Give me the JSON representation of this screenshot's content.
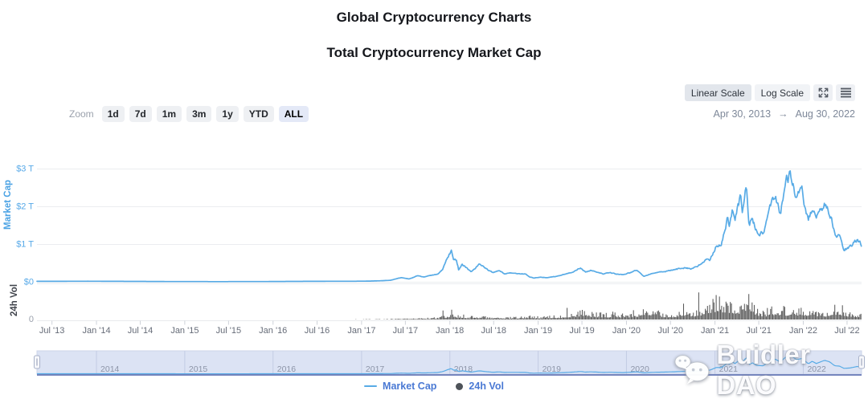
{
  "page": {
    "title": "Global Cryptocurrency Charts",
    "subtitle": "Total Cryptocurrency Market Cap"
  },
  "toolbar": {
    "scale_buttons": [
      {
        "label": "Linear Scale",
        "selected": true
      },
      {
        "label": "Log Scale",
        "selected": false
      }
    ],
    "icons": [
      "fullscreen-icon",
      "menu-icon"
    ],
    "date_range": {
      "start": "Apr 30, 2013",
      "arrow": "→",
      "end": "Aug 30, 2022"
    }
  },
  "zoom_controls": {
    "label": "Zoom",
    "options": [
      {
        "label": "1d",
        "selected": false
      },
      {
        "label": "7d",
        "selected": false
      },
      {
        "label": "1m",
        "selected": false
      },
      {
        "label": "3m",
        "selected": false
      },
      {
        "label": "1y",
        "selected": false
      },
      {
        "label": "YTD",
        "selected": false
      },
      {
        "label": "ALL",
        "selected": true
      }
    ]
  },
  "legend": {
    "items": [
      {
        "label": "Market Cap",
        "type": "line",
        "color": "#58abe6"
      },
      {
        "label": "24h Vol",
        "type": "dot",
        "color": "#4e5359"
      }
    ]
  },
  "watermark": {
    "text": "Buidler DAO",
    "icon": "wechat-icon"
  },
  "chart_data": {
    "type": "line",
    "title": "Total Cryptocurrency Market Cap",
    "x_range": [
      "2013-04-30",
      "2022-08-30"
    ],
    "grid": true,
    "legend_position": "bottom",
    "y_axis_market_cap": {
      "title": "Market Cap",
      "unit": "trillion USD",
      "ylim": [
        0,
        3.2
      ],
      "ticks": [
        {
          "value": 0,
          "label": "$0"
        },
        {
          "value": 1,
          "label": "$1 T"
        },
        {
          "value": 2,
          "label": "$2 T"
        },
        {
          "value": 3,
          "label": "$3 T"
        }
      ],
      "color": "#57a9e8"
    },
    "y_axis_volume": {
      "title": "24h Vol",
      "unit": "billion USD",
      "ylim": [
        0,
        300
      ],
      "ticks": [
        {
          "value": 0,
          "label": "0"
        }
      ],
      "color": "#9aa0ac"
    },
    "x_ticks": [
      {
        "date": "2013-07-01",
        "label": "Jul '13"
      },
      {
        "date": "2014-01-01",
        "label": "Jan '14"
      },
      {
        "date": "2014-07-01",
        "label": "Jul '14"
      },
      {
        "date": "2015-01-01",
        "label": "Jan '15"
      },
      {
        "date": "2015-07-01",
        "label": "Jul '15"
      },
      {
        "date": "2016-01-01",
        "label": "Jan '16"
      },
      {
        "date": "2016-07-01",
        "label": "Jul '16"
      },
      {
        "date": "2017-01-01",
        "label": "Jan '17"
      },
      {
        "date": "2017-07-01",
        "label": "Jul '17"
      },
      {
        "date": "2018-01-01",
        "label": "Jan '18"
      },
      {
        "date": "2018-07-01",
        "label": "Jul '18"
      },
      {
        "date": "2019-01-01",
        "label": "Jan '19"
      },
      {
        "date": "2019-07-01",
        "label": "Jul '19"
      },
      {
        "date": "2020-01-01",
        "label": "Jan '20"
      },
      {
        "date": "2020-07-01",
        "label": "Jul '20"
      },
      {
        "date": "2021-01-01",
        "label": "Jan '21"
      },
      {
        "date": "2021-07-01",
        "label": "Jul '21"
      },
      {
        "date": "2022-01-01",
        "label": "Jan '22"
      },
      {
        "date": "2022-07-01",
        "label": "Jul '22"
      }
    ],
    "navigator_years": [
      {
        "date": "2014-01-01",
        "label": "2014"
      },
      {
        "date": "2015-01-01",
        "label": "2015"
      },
      {
        "date": "2016-01-01",
        "label": "2016"
      },
      {
        "date": "2017-01-01",
        "label": "2017"
      },
      {
        "date": "2018-01-01",
        "label": "2018"
      },
      {
        "date": "2019-01-01",
        "label": "2019"
      },
      {
        "date": "2020-01-01",
        "label": "2020"
      },
      {
        "date": "2021-01-01",
        "label": "2021"
      },
      {
        "date": "2022-01-01",
        "label": "2022"
      }
    ],
    "series": [
      {
        "name": "Market Cap",
        "type": "line",
        "color": "#58abe6",
        "unit": "trillion USD",
        "points": [
          [
            "2013-04-30",
            0.013
          ],
          [
            "2013-06-15",
            0.012
          ],
          [
            "2013-11-30",
            0.016
          ],
          [
            "2014-01-05",
            0.014
          ],
          [
            "2014-06-01",
            0.011
          ],
          [
            "2014-12-01",
            0.006
          ],
          [
            "2015-06-01",
            0.005
          ],
          [
            "2015-12-01",
            0.007
          ],
          [
            "2016-06-15",
            0.013
          ],
          [
            "2016-12-15",
            0.016
          ],
          [
            "2017-02-01",
            0.019
          ],
          [
            "2017-03-15",
            0.026
          ],
          [
            "2017-05-01",
            0.04
          ],
          [
            "2017-05-25",
            0.08
          ],
          [
            "2017-06-15",
            0.112
          ],
          [
            "2017-07-16",
            0.07
          ],
          [
            "2017-08-20",
            0.16
          ],
          [
            "2017-09-14",
            0.13
          ],
          [
            "2017-10-15",
            0.17
          ],
          [
            "2017-11-12",
            0.2
          ],
          [
            "2017-12-01",
            0.32
          ],
          [
            "2017-12-20",
            0.6
          ],
          [
            "2018-01-07",
            0.82
          ],
          [
            "2018-01-17",
            0.55
          ],
          [
            "2018-01-28",
            0.6
          ],
          [
            "2018-02-06",
            0.33
          ],
          [
            "2018-02-20",
            0.47
          ],
          [
            "2018-03-10",
            0.38
          ],
          [
            "2018-03-30",
            0.26
          ],
          [
            "2018-04-25",
            0.42
          ],
          [
            "2018-05-05",
            0.46
          ],
          [
            "2018-05-25",
            0.36
          ],
          [
            "2018-06-12",
            0.3
          ],
          [
            "2018-06-29",
            0.24
          ],
          [
            "2018-07-25",
            0.3
          ],
          [
            "2018-08-14",
            0.21
          ],
          [
            "2018-09-05",
            0.23
          ],
          [
            "2018-10-10",
            0.22
          ],
          [
            "2018-11-10",
            0.21
          ],
          [
            "2018-11-26",
            0.13
          ],
          [
            "2018-12-15",
            0.1
          ],
          [
            "2019-01-10",
            0.12
          ],
          [
            "2019-02-07",
            0.11
          ],
          [
            "2019-03-15",
            0.14
          ],
          [
            "2019-04-10",
            0.18
          ],
          [
            "2019-05-15",
            0.24
          ],
          [
            "2019-06-26",
            0.36
          ],
          [
            "2019-07-17",
            0.26
          ],
          [
            "2019-08-06",
            0.3
          ],
          [
            "2019-09-03",
            0.26
          ],
          [
            "2019-09-26",
            0.21
          ],
          [
            "2019-10-26",
            0.24
          ],
          [
            "2019-11-25",
            0.2
          ],
          [
            "2019-12-18",
            0.19
          ],
          [
            "2020-01-15",
            0.24
          ],
          [
            "2020-02-14",
            0.31
          ],
          [
            "2020-03-13",
            0.14
          ],
          [
            "2020-04-10",
            0.21
          ],
          [
            "2020-05-08",
            0.25
          ],
          [
            "2020-06-10",
            0.27
          ],
          [
            "2020-07-25",
            0.33
          ],
          [
            "2020-09-01",
            0.39
          ],
          [
            "2020-09-23",
            0.34
          ],
          [
            "2020-10-21",
            0.4
          ],
          [
            "2020-11-24",
            0.58
          ],
          [
            "2020-12-10",
            0.55
          ],
          [
            "2021-01-08",
            1.0
          ],
          [
            "2021-01-27",
            0.92
          ],
          [
            "2021-02-21",
            1.7
          ],
          [
            "2021-02-28",
            1.45
          ],
          [
            "2021-03-13",
            1.85
          ],
          [
            "2021-03-25",
            1.6
          ],
          [
            "2021-04-16",
            2.25
          ],
          [
            "2021-04-25",
            1.85
          ],
          [
            "2021-05-11",
            2.55
          ],
          [
            "2021-05-23",
            1.45
          ],
          [
            "2021-06-05",
            1.7
          ],
          [
            "2021-06-22",
            1.3
          ],
          [
            "2021-07-20",
            1.25
          ],
          [
            "2021-08-15",
            2.0
          ],
          [
            "2021-09-06",
            2.3
          ],
          [
            "2021-09-28",
            1.85
          ],
          [
            "2021-10-20",
            2.6
          ],
          [
            "2021-11-09",
            2.9
          ],
          [
            "2021-12-04",
            2.2
          ],
          [
            "2021-12-27",
            2.4
          ],
          [
            "2022-01-22",
            1.55
          ],
          [
            "2022-02-07",
            1.95
          ],
          [
            "2022-02-24",
            1.6
          ],
          [
            "2022-03-30",
            2.1
          ],
          [
            "2022-04-20",
            1.85
          ],
          [
            "2022-05-11",
            1.25
          ],
          [
            "2022-05-30",
            1.2
          ],
          [
            "2022-06-18",
            0.85
          ],
          [
            "2022-07-12",
            0.9
          ],
          [
            "2022-08-13",
            1.15
          ],
          [
            "2022-08-30",
            0.98
          ]
        ]
      },
      {
        "name": "24h Vol",
        "type": "column",
        "color": "#5a5a5a",
        "unit": "billion USD (daily envelope)",
        "points": [
          [
            "2013-04-30",
            0.15
          ],
          [
            "2013-12-01",
            1.2
          ],
          [
            "2014-03-01",
            0.6
          ],
          [
            "2015-01-01",
            0.3
          ],
          [
            "2016-01-01",
            0.5
          ],
          [
            "2016-12-01",
            1.5
          ],
          [
            "2017-05-25",
            4
          ],
          [
            "2017-08-20",
            9
          ],
          [
            "2017-11-15",
            12
          ],
          [
            "2017-12-22",
            30
          ],
          [
            "2018-01-08",
            40
          ],
          [
            "2018-02-06",
            35
          ],
          [
            "2018-03-15",
            22
          ],
          [
            "2018-06-01",
            18
          ],
          [
            "2018-09-01",
            14
          ],
          [
            "2018-11-20",
            22
          ],
          [
            "2019-01-15",
            18
          ],
          [
            "2019-04-03",
            30
          ],
          [
            "2019-05-15",
            45
          ],
          [
            "2019-07-01",
            60
          ],
          [
            "2019-08-15",
            45
          ],
          [
            "2019-10-26",
            40
          ],
          [
            "2019-12-18",
            35
          ],
          [
            "2020-02-14",
            50
          ],
          [
            "2020-03-13",
            95
          ],
          [
            "2020-04-15",
            50
          ],
          [
            "2020-06-10",
            45
          ],
          [
            "2020-08-01",
            40
          ],
          [
            "2020-09-05",
            50
          ],
          [
            "2020-11-24",
            70
          ],
          [
            "2021-01-11",
            140
          ],
          [
            "2021-02-23",
            130
          ],
          [
            "2021-04-18",
            110
          ],
          [
            "2021-05-19",
            160
          ],
          [
            "2021-06-22",
            80
          ],
          [
            "2021-07-20",
            55
          ],
          [
            "2021-08-15",
            70
          ],
          [
            "2021-09-07",
            90
          ],
          [
            "2021-10-28",
            75
          ],
          [
            "2021-11-10",
            85
          ],
          [
            "2021-12-04",
            80
          ],
          [
            "2022-01-24",
            70
          ],
          [
            "2022-02-24",
            65
          ],
          [
            "2022-03-30",
            55
          ],
          [
            "2022-05-12",
            90
          ],
          [
            "2022-06-14",
            75
          ],
          [
            "2022-07-12",
            50
          ],
          [
            "2022-08-30",
            45
          ]
        ]
      }
    ]
  }
}
